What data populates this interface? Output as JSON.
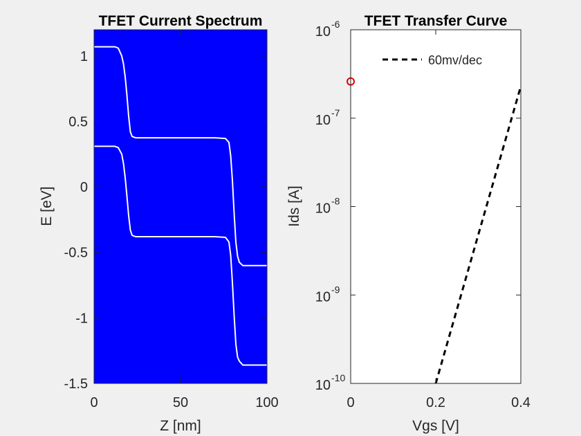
{
  "chart_data": [
    {
      "type": "line",
      "title": "TFET Current Spectrum",
      "xlabel": "Z [nm]",
      "ylabel": "E [eV]",
      "xlim": [
        0,
        100
      ],
      "ylim": [
        -1.5,
        1.2
      ],
      "xticks": [
        "0",
        "50",
        "100"
      ],
      "yticks": [
        "1",
        "0.5",
        "0",
        "-0.5",
        "-1",
        "-1.5"
      ],
      "background_color": "#0000ff",
      "line_color": "#ffffff",
      "grid": false,
      "series": [
        {
          "x": [
            0,
            12,
            14,
            16,
            17,
            18,
            19,
            20,
            21,
            22,
            24,
            30,
            50,
            70,
            76,
            78,
            79,
            80,
            81,
            82,
            83,
            84,
            86,
            90,
            100
          ],
          "y": [
            1.07,
            1.07,
            1.06,
            1.0,
            0.94,
            0.84,
            0.7,
            0.54,
            0.42,
            0.385,
            0.375,
            0.375,
            0.375,
            0.375,
            0.37,
            0.34,
            0.24,
            0.05,
            -0.2,
            -0.42,
            -0.53,
            -0.575,
            -0.6,
            -0.6,
            -0.6
          ]
        },
        {
          "x": [
            0,
            12,
            14,
            16,
            17,
            18,
            19,
            20,
            21,
            22,
            24,
            30,
            50,
            70,
            76,
            78,
            79,
            80,
            81,
            82,
            83,
            84,
            86,
            90,
            100
          ],
          "y": [
            0.31,
            0.31,
            0.3,
            0.25,
            0.18,
            0.07,
            -0.07,
            -0.22,
            -0.33,
            -0.37,
            -0.38,
            -0.38,
            -0.38,
            -0.38,
            -0.385,
            -0.42,
            -0.52,
            -0.73,
            -0.98,
            -1.2,
            -1.3,
            -1.33,
            -1.36,
            -1.36,
            -1.36
          ]
        }
      ]
    },
    {
      "type": "line",
      "title": "TFET Transfer Curve",
      "xlabel": "Vgs [V]",
      "ylabel": "Ids [A]",
      "xlim": [
        0,
        0.4
      ],
      "ylim": [
        1e-10,
        1e-06
      ],
      "yscale": "log",
      "xticks": [
        "0",
        "0.2",
        "0.4"
      ],
      "yticks": [
        {
          "base": "10",
          "exp": "-6"
        },
        {
          "base": "10",
          "exp": "-7"
        },
        {
          "base": "10",
          "exp": "-8"
        },
        {
          "base": "10",
          "exp": "-9"
        },
        {
          "base": "10",
          "exp": "-10"
        }
      ],
      "legend_position": "top",
      "grid": false,
      "series": [
        {
          "name": "60mv/dec",
          "style": "dashed",
          "color": "#000000",
          "x": [
            0.2,
            0.4
          ],
          "y": [
            1e-10,
            2.3e-07
          ]
        },
        {
          "style": "marker-circle",
          "color": "#e00000",
          "x": [
            0.0
          ],
          "y": [
            2.6e-07
          ]
        }
      ]
    }
  ]
}
